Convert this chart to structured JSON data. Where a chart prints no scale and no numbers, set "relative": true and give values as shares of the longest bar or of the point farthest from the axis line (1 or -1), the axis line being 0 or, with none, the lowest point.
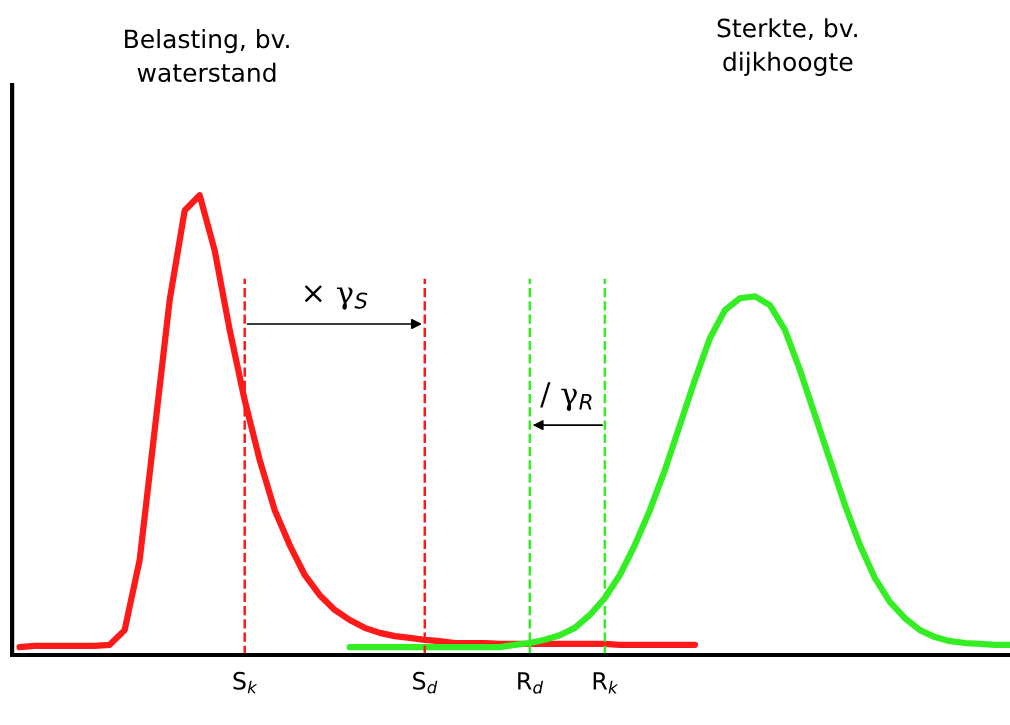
{
  "chart_data": {
    "type": "line",
    "relative": true,
    "tick_labels": "x",
    "grid": false,
    "marker": "none",
    "line_style": "solid",
    "categories": [
      null,
      null,
      null,
      null,
      null,
      null,
      null,
      null,
      null,
      null,
      null,
      null,
      null,
      null,
      null,
      "S$_{k}$",
      null,
      null,
      null,
      null,
      null,
      null,
      null,
      null,
      null,
      null,
      null,
      "S$_{d}$",
      null,
      null,
      null,
      null,
      null,
      null,
      "R$_{d}$",
      null,
      null,
      null,
      null,
      "R$_{k}$",
      null,
      null,
      null,
      null,
      null,
      null,
      null,
      null,
      null,
      null,
      null,
      null,
      null,
      null,
      null,
      null,
      null,
      null,
      null,
      null,
      null,
      null,
      null,
      null,
      null,
      null,
      null
    ],
    "series": [
      {
        "color": "#ff1a1a",
        "values": [
          0.017,
          0.02,
          0.02,
          0.02,
          0.02,
          0.02,
          0.022,
          0.054,
          0.207,
          0.489,
          0.772,
          0.967,
          1.0,
          0.88,
          0.707,
          0.554,
          0.424,
          0.315,
          0.239,
          0.174,
          0.13,
          0.098,
          0.076,
          0.059,
          0.048,
          0.041,
          0.037,
          0.033,
          0.03,
          0.026,
          0.026,
          0.026,
          0.024,
          0.024,
          0.024,
          0.024,
          0.024,
          0.024,
          0.024,
          0.024,
          0.022,
          0.022,
          0.022,
          0.022,
          0.022,
          0.022,
          null,
          null,
          null,
          null,
          null,
          null,
          null,
          null,
          null,
          null,
          null,
          null,
          null,
          null,
          null,
          null,
          null,
          null,
          null,
          null,
          null
        ]
      },
      {
        "color": "#33ee22",
        "values": [
          null,
          null,
          null,
          null,
          null,
          null,
          null,
          null,
          null,
          null,
          null,
          null,
          null,
          null,
          null,
          null,
          null,
          null,
          null,
          null,
          null,
          null,
          0.017,
          0.017,
          0.017,
          0.017,
          0.017,
          0.017,
          0.017,
          0.017,
          0.017,
          0.017,
          0.017,
          0.022,
          0.026,
          0.033,
          0.043,
          0.059,
          0.087,
          0.124,
          0.174,
          0.239,
          0.315,
          0.402,
          0.5,
          0.598,
          0.689,
          0.75,
          0.776,
          0.78,
          0.761,
          0.707,
          0.62,
          0.522,
          0.424,
          0.326,
          0.239,
          0.167,
          0.115,
          0.08,
          0.054,
          0.039,
          0.03,
          0.026,
          0.024,
          0.022,
          0.022
        ]
      }
    ],
    "ref_lines": [
      {
        "axis": "x",
        "value": "S$_{k}$",
        "color": "#ff1a1a",
        "line_style": "dashed"
      },
      {
        "axis": "x",
        "value": "S$_{d}$",
        "color": "#ff1a1a",
        "line_style": "dashed"
      },
      {
        "axis": "x",
        "value": "R$_{d}$",
        "color": "#33ee22",
        "line_style": "dashed"
      },
      {
        "axis": "x",
        "value": "R$_{k}$",
        "color": "#33ee22",
        "line_style": "dashed"
      }
    ],
    "annotations": [
      "Belasting, bv.\nwaterstand",
      "Sterkte, bv.\ndijkhoogte",
      {
        "text": "× γ$_{S}$",
        "x": "S$_{k}$",
        "y": 0.72
      },
      {
        "text": "/ γ$_{R}$",
        "x": "R$_{k}$",
        "y": 0.5
      }
    ]
  }
}
